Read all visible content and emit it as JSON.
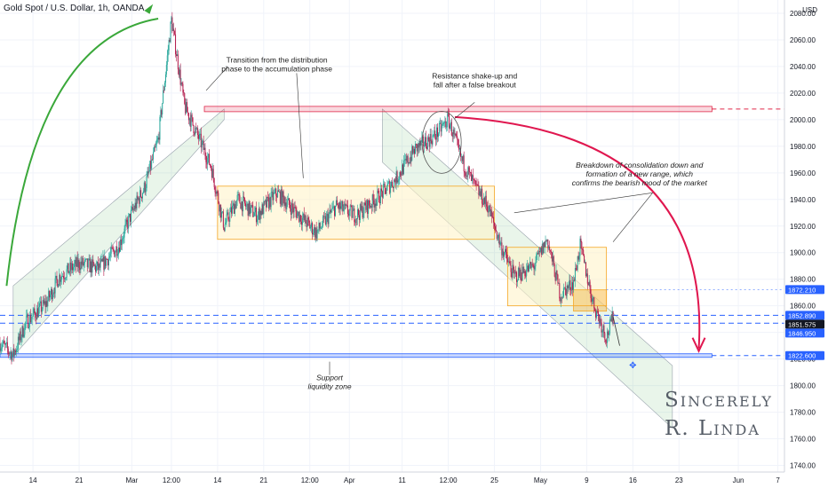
{
  "header": {
    "instrument": "Gold Spot / U.S. Dollar, 1h, OANDA",
    "currency": "USD"
  },
  "signature": {
    "line1": "Sincerely",
    "line2": "R. Linda"
  },
  "colors": {
    "up_candle": "#26a69a",
    "down_candle": "#b2184a",
    "channel": "#4caf50",
    "range": "#f5a623",
    "resistance": "#e0294a",
    "support": "#2962ff",
    "arrow_up": "#3aa83a",
    "arrow_down": "#e0174f"
  },
  "chart_data": {
    "type": "candlestick",
    "title": "Gold Spot / U.S. Dollar, 1h, OANDA",
    "yunit": "USD",
    "y_axis_side": "right",
    "ylim": [
      1735,
      2090
    ],
    "xlim": [
      "2023-02-09",
      "2023-06-08"
    ],
    "y_ticks": [
      1740,
      1760,
      1780,
      1800,
      1820,
      1840,
      1860,
      1880,
      1900,
      1920,
      1940,
      1960,
      1980,
      2000,
      2020,
      2040,
      2060,
      2080
    ],
    "x_ticks": [
      {
        "label": "14",
        "x": "2023-02-14"
      },
      {
        "label": "21",
        "x": "2023-02-21"
      },
      {
        "label": "Mar",
        "x": "2023-03-01"
      },
      {
        "label": "12:00",
        "x": "2023-03-07"
      },
      {
        "label": "14",
        "x": "2023-03-14"
      },
      {
        "label": "21",
        "x": "2023-03-21"
      },
      {
        "label": "12:00",
        "x": "2023-03-28"
      },
      {
        "label": "Apr",
        "x": "2023-04-03"
      },
      {
        "label": "11",
        "x": "2023-04-11"
      },
      {
        "label": "12:00",
        "x": "2023-04-18"
      },
      {
        "label": "25",
        "x": "2023-04-25"
      },
      {
        "label": "May",
        "x": "2023-05-02"
      },
      {
        "label": "9",
        "x": "2023-05-09"
      },
      {
        "label": "16",
        "x": "2023-05-16"
      },
      {
        "label": "23",
        "x": "2023-05-23"
      },
      {
        "label": "Jun",
        "x": "2023-06-01"
      },
      {
        "label": "7",
        "x": "2023-06-07"
      }
    ],
    "price_path": [
      [
        "2023-02-09",
        1832
      ],
      [
        "2023-02-11",
        1823
      ],
      [
        "2023-02-13",
        1848
      ],
      [
        "2023-02-16",
        1862
      ],
      [
        "2023-02-18",
        1882
      ],
      [
        "2023-02-21",
        1892
      ],
      [
        "2023-02-24",
        1888
      ],
      [
        "2023-02-27",
        1905
      ],
      [
        "2023-03-01",
        1930
      ],
      [
        "2023-03-03",
        1950
      ],
      [
        "2023-03-05",
        1985
      ],
      [
        "2023-03-07",
        2075
      ],
      [
        "2023-03-09",
        2010
      ],
      [
        "2023-03-11",
        1988
      ],
      [
        "2023-03-13",
        1965
      ],
      [
        "2023-03-15",
        1920
      ],
      [
        "2023-03-17",
        1940
      ],
      [
        "2023-03-20",
        1928
      ],
      [
        "2023-03-23",
        1945
      ],
      [
        "2023-03-26",
        1930
      ],
      [
        "2023-03-29",
        1915
      ],
      [
        "2023-04-01",
        1935
      ],
      [
        "2023-04-04",
        1928
      ],
      [
        "2023-04-07",
        1940
      ],
      [
        "2023-04-10",
        1955
      ],
      [
        "2023-04-13",
        1978
      ],
      [
        "2023-04-16",
        1988
      ],
      [
        "2023-04-18",
        2000
      ],
      [
        "2023-04-20",
        1970
      ],
      [
        "2023-04-22",
        1950
      ],
      [
        "2023-04-24",
        1935
      ],
      [
        "2023-04-26",
        1905
      ],
      [
        "2023-04-28",
        1882
      ],
      [
        "2023-05-01",
        1890
      ],
      [
        "2023-05-03",
        1910
      ],
      [
        "2023-05-05",
        1868
      ],
      [
        "2023-05-07",
        1878
      ],
      [
        "2023-05-08",
        1905
      ],
      [
        "2023-05-10",
        1862
      ],
      [
        "2023-05-12",
        1836
      ],
      [
        "2023-05-13",
        1852
      ]
    ],
    "price_labels": [
      {
        "value": 1872.21,
        "text": "1872.210",
        "color": "#2962ff"
      },
      {
        "value": 1852.89,
        "text": "1852.890",
        "color": "#2962ff"
      },
      {
        "value": 1851.575,
        "text": "1851.575",
        "color": "#131722"
      },
      {
        "value": 1846.95,
        "text": "1846.950",
        "color": "#2962ff"
      },
      {
        "value": 1822.6,
        "text": "1822.600",
        "color": "#2962ff"
      }
    ],
    "levels": {
      "resistance": {
        "price": 2008,
        "from": "2023-03-12",
        "to": "2023-05-28"
      },
      "support": {
        "price": 1822.6,
        "from": "2023-02-09",
        "to": "2023-05-28"
      },
      "dashed_blue": [
        1852.89,
        1846.95,
        1872.21
      ]
    },
    "ranges": [
      {
        "from": "2023-03-14",
        "to": "2023-04-25",
        "high": 1950,
        "low": 1910
      },
      {
        "from": "2023-04-27",
        "to": "2023-05-12",
        "high": 1904,
        "low": 1860
      },
      {
        "from": "2023-05-07",
        "to": "2023-05-12",
        "high": 1872,
        "low": 1856
      }
    ],
    "channels": [
      {
        "lower": [
          [
            "2023-02-11",
            1822
          ],
          [
            "2023-03-15",
            2000
          ]
        ],
        "upper": [
          [
            "2023-02-11",
            1875
          ],
          [
            "2023-03-15",
            2008
          ]
        ]
      },
      {
        "upper": [
          [
            "2023-04-08",
            2008
          ],
          [
            "2023-05-22",
            1815
          ]
        ],
        "lower": [
          [
            "2023-04-08",
            1968
          ],
          [
            "2023-05-22",
            1768
          ]
        ]
      }
    ],
    "annotations": [
      {
        "text": "Transition from the distribution",
        "text2": "phase to the accumulation phase",
        "x": "2023-03-23",
        "y": 2043
      },
      {
        "text": "Resistance shake-up and",
        "text2": "fall after a false breakout",
        "x": "2023-04-22",
        "y": 2031
      },
      {
        "text": "Breakdown of consolidation down and",
        "text2": "formation of a new range, which",
        "text3": "confirms the bearish mood of the market",
        "x": "2023-05-17",
        "y": 1964
      },
      {
        "text": "Support",
        "text2": "liquidity zone",
        "x": "2023-03-31",
        "y": 1804
      }
    ]
  }
}
